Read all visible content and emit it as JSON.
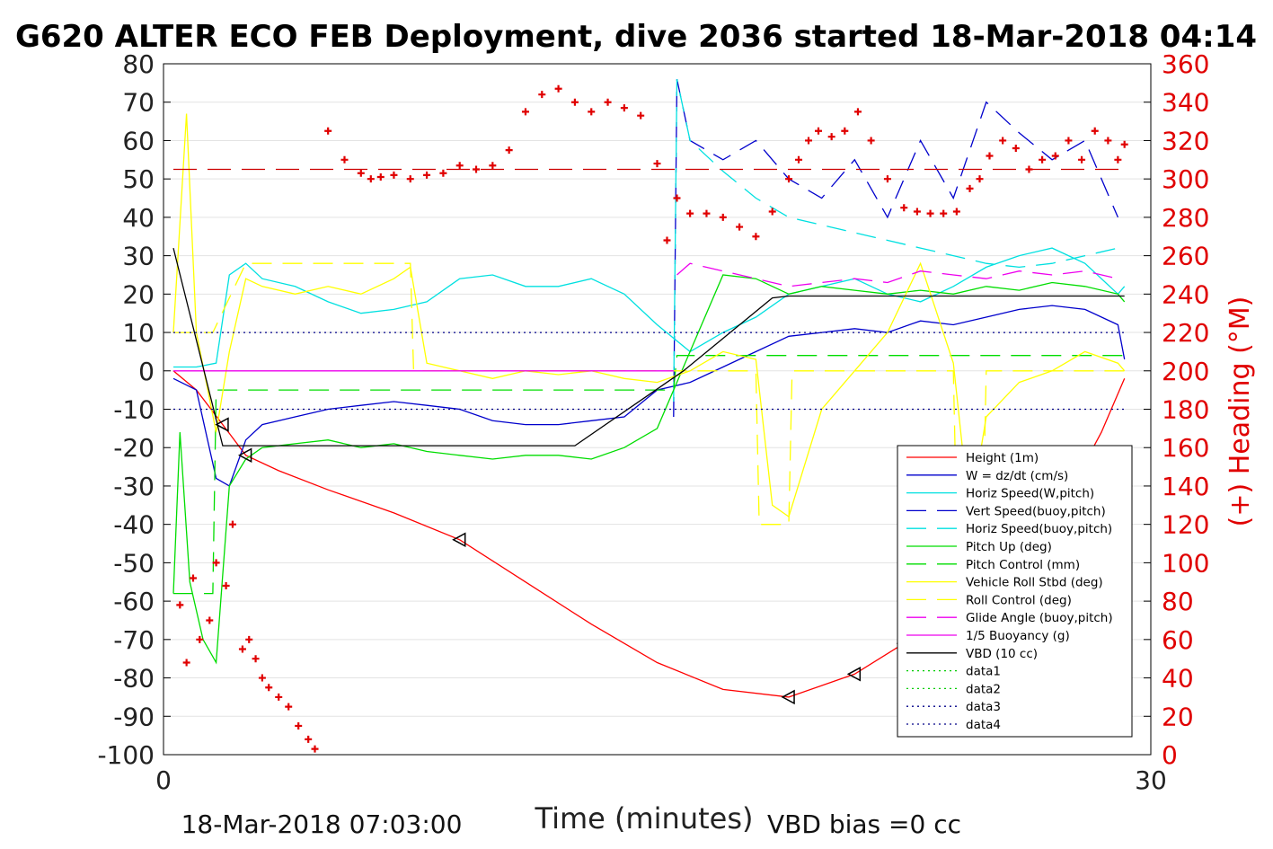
{
  "chart_data": {
    "type": "line",
    "title": "G620 ALTER ECO FEB Deployment, dive 2036 started 18-Mar-2018 04:14",
    "xlabel": "Time (minutes)",
    "ylabel_left": "",
    "ylabel_right": "(+) Heading (°M)",
    "xlim": [
      0,
      30
    ],
    "ylim_left": [
      -100,
      80
    ],
    "ylim_right": [
      0,
      360
    ],
    "x_ticks": [
      "0",
      "30"
    ],
    "y_ticks_left": [
      "80",
      "70",
      "60",
      "50",
      "40",
      "30",
      "20",
      "10",
      "0",
      "-10",
      "-20",
      "-30",
      "-40",
      "-50",
      "-60",
      "-70",
      "-80",
      "-90",
      "-100"
    ],
    "y_ticks_right": [
      "360",
      "340",
      "320",
      "300",
      "280",
      "260",
      "240",
      "220",
      "200",
      "180",
      "160",
      "140",
      "120",
      "100",
      "80",
      "60",
      "40",
      "20",
      "0"
    ],
    "grid": true,
    "legend_placement": "lower-right",
    "footer_left": "18-Mar-2018 07:03:00",
    "footer_right": "VBD bias =0 cc",
    "colors": {
      "right_axis": "#e00000",
      "heading_marker": "#e00000"
    },
    "series": [
      {
        "name": "Height (1m)",
        "color": "#ff0000",
        "style": "solid",
        "x": [
          0.3,
          1.0,
          1.8,
          2.5,
          3.5,
          5.0,
          7.0,
          9.0,
          11.0,
          13.0,
          15.0,
          17.0,
          19.0,
          21.0,
          22.5,
          24.0,
          25.0,
          26.0,
          27.5,
          28.5,
          29.2
        ],
        "y": [
          0,
          -5,
          -14,
          -22,
          -26,
          -31,
          -37,
          -44,
          -55,
          -66,
          -76,
          -83,
          -85,
          -79,
          -71,
          -63,
          -55,
          -46,
          -32,
          -16,
          -2
        ]
      },
      {
        "name": "W = dz/dt (cm/s)",
        "color": "#0000cc",
        "style": "solid",
        "x": [
          0.3,
          1.0,
          1.6,
          2.0,
          2.5,
          3.0,
          4.0,
          5.0,
          6.0,
          7.0,
          8.0,
          9.0,
          10.0,
          11.0,
          12.0,
          13.0,
          14.0,
          15.0,
          16.0,
          17.0,
          18.0,
          19.0,
          20.0,
          21.0,
          22.0,
          23.0,
          24.0,
          25.0,
          26.0,
          27.0,
          28.0,
          29.0,
          29.2
        ],
        "y": [
          -2,
          -5,
          -28,
          -30,
          -18,
          -14,
          -12,
          -10,
          -9,
          -8,
          -9,
          -10,
          -13,
          -14,
          -14,
          -13,
          -12,
          -5,
          -3,
          1,
          5,
          9,
          10,
          11,
          10,
          13,
          12,
          14,
          16,
          17,
          16,
          12,
          3
        ]
      },
      {
        "name": "Horiz Speed(W,pitch)",
        "color": "#00e0e0",
        "style": "solid",
        "x": [
          0.3,
          1.0,
          1.6,
          2.0,
          2.5,
          3.0,
          4.0,
          5.0,
          6.0,
          7.0,
          8.0,
          9.0,
          10.0,
          11.0,
          12.0,
          13.0,
          14.0,
          15.0,
          16.0,
          17.0,
          18.0,
          19.0,
          20.0,
          21.0,
          22.0,
          23.0,
          24.0,
          25.0,
          26.0,
          27.0,
          28.0,
          29.0,
          29.2
        ],
        "y": [
          1,
          1,
          2,
          25,
          28,
          24,
          22,
          18,
          15,
          16,
          18,
          24,
          25,
          22,
          22,
          24,
          20,
          12,
          5,
          10,
          14,
          20,
          22,
          24,
          20,
          18,
          22,
          27,
          30,
          32,
          28,
          20,
          22
        ]
      },
      {
        "name": "Vert Speed(buoy,pitch)",
        "color": "#0000cc",
        "style": "dashed",
        "x": [
          15.5,
          15.6,
          16.0,
          17.0,
          18.0,
          19.0,
          20.0,
          21.0,
          22.0,
          23.0,
          24.0,
          25.0,
          26.0,
          27.0,
          28.0,
          29.0
        ],
        "y": [
          -12,
          76,
          60,
          55,
          60,
          50,
          45,
          55,
          40,
          60,
          45,
          70,
          62,
          55,
          60,
          40
        ]
      },
      {
        "name": "Horiz Speed(buoy,pitch)",
        "color": "#00e0e0",
        "style": "dashed",
        "x": [
          15.5,
          15.6,
          16.0,
          17.0,
          18.0,
          19.0,
          20.0,
          21.0,
          22.0,
          23.0,
          24.0,
          25.0,
          26.0,
          27.0,
          28.0,
          29.0
        ],
        "y": [
          -8,
          76,
          60,
          52,
          45,
          40,
          38,
          36,
          34,
          32,
          30,
          28,
          27,
          28,
          30,
          32
        ]
      },
      {
        "name": "Pitch Up (deg)",
        "color": "#00dd00",
        "style": "solid",
        "x": [
          0.3,
          0.5,
          0.8,
          1.2,
          1.6,
          2.0,
          2.5,
          3.0,
          4.0,
          5.0,
          6.0,
          7.0,
          8.0,
          9.0,
          10.0,
          11.0,
          12.0,
          13.0,
          14.0,
          15.0,
          16.0,
          17.0,
          18.0,
          19.0,
          20.0,
          21.0,
          22.0,
          23.0,
          24.0,
          25.0,
          26.0,
          27.0,
          28.0,
          29.0,
          29.2
        ],
        "y": [
          -58,
          -16,
          -55,
          -70,
          -76,
          -30,
          -23,
          -20,
          -19,
          -18,
          -20,
          -19,
          -21,
          -22,
          -23,
          -22,
          -22,
          -23,
          -20,
          -15,
          5,
          25,
          24,
          20,
          22,
          21,
          20,
          21,
          20,
          22,
          21,
          23,
          22,
          20,
          18
        ]
      },
      {
        "name": "Pitch Control (mm)",
        "color": "#00dd00",
        "style": "dashed",
        "x": [
          0.3,
          1.5,
          1.6,
          15.5,
          15.6,
          29.2
        ],
        "y": [
          -58,
          -58,
          -5,
          -5,
          4,
          4
        ]
      },
      {
        "name": "Vehicle Roll Stbd (deg)",
        "color": "#ffff00",
        "style": "solid",
        "x": [
          0.3,
          0.7,
          1.0,
          1.6,
          2.0,
          2.5,
          3.0,
          4.0,
          5.0,
          6.0,
          7.0,
          7.5,
          8.0,
          9.0,
          10.0,
          11.0,
          12.0,
          13.0,
          14.0,
          15.0,
          16.0,
          17.0,
          18.0,
          18.5,
          19.0,
          20.0,
          21.0,
          22.0,
          23.0,
          24.0,
          24.5,
          25.0,
          26.0,
          27.0,
          28.0,
          29.0,
          29.2
        ],
        "y": [
          10,
          67,
          10,
          -16,
          5,
          24,
          22,
          20,
          22,
          20,
          24,
          27,
          2,
          0,
          -2,
          0,
          -1,
          0,
          -2,
          -3,
          0,
          5,
          3,
          -35,
          -38,
          -10,
          0,
          10,
          28,
          2,
          -38,
          -12,
          -3,
          0,
          5,
          2,
          0
        ]
      },
      {
        "name": "Roll Control (deg)",
        "color": "#ffff00",
        "style": "dashed",
        "x": [
          0.3,
          1.5,
          2.5,
          3.0,
          7.5,
          7.6,
          18.0,
          18.1,
          19.0,
          19.1,
          24.0,
          24.1,
          24.9,
          25.0,
          29.2
        ],
        "y": [
          10,
          10,
          28,
          28,
          28,
          0,
          0,
          -40,
          -40,
          0,
          0,
          -40,
          -40,
          0,
          0
        ]
      },
      {
        "name": "Glide Angle (buoy,pitch)",
        "color": "#ee00ee",
        "style": "dashed",
        "x": [
          15.6,
          16.0,
          17.0,
          18.0,
          19.0,
          20.0,
          21.0,
          22.0,
          23.0,
          24.0,
          25.0,
          26.0,
          27.0,
          28.0,
          29.0
        ],
        "y": [
          25,
          28,
          26,
          24,
          22,
          23,
          24,
          23,
          26,
          25,
          24,
          26,
          25,
          26,
          24
        ]
      },
      {
        "name": "1/5 Buoyancy (g)",
        "color": "#ee00ee",
        "style": "solid",
        "x": [
          0.3,
          15.5
        ],
        "y": [
          0,
          0
        ]
      },
      {
        "name": "VBD (10 cc)",
        "color": "#000000",
        "style": "solid",
        "x": [
          0.3,
          1.8,
          12.5,
          15.8,
          18.5,
          19.0,
          29.2
        ],
        "y": [
          32,
          -19.5,
          -19.5,
          0,
          19,
          19.5,
          19.5
        ]
      },
      {
        "name": "data1",
        "color": "#00cc00",
        "style": "dotted",
        "x": [],
        "y": []
      },
      {
        "name": "data2",
        "color": "#00cc00",
        "style": "dotted",
        "x": [],
        "y": []
      },
      {
        "name": "data3",
        "color": "#000088",
        "style": "dotted",
        "x": [
          0.3,
          29.2
        ],
        "y": [
          10,
          10
        ]
      },
      {
        "name": "data4",
        "color": "#000088",
        "style": "dotted",
        "x": [
          0.3,
          29.2
        ],
        "y": [
          -10,
          -10
        ]
      }
    ],
    "reference_lines": [
      {
        "axis": "right",
        "value": 305,
        "color": "#cc0000",
        "style": "longdash"
      }
    ],
    "heading": {
      "axis": "right",
      "color": "#e00000",
      "x": [
        0.5,
        0.7,
        0.9,
        1.1,
        1.4,
        1.6,
        1.9,
        2.1,
        2.4,
        2.6,
        2.8,
        3.0,
        3.2,
        3.5,
        3.8,
        4.1,
        4.4,
        4.6,
        5.0,
        5.5,
        6.0,
        6.3,
        6.6,
        7.0,
        7.5,
        8.0,
        8.5,
        9.0,
        9.5,
        10.0,
        10.5,
        11.0,
        11.5,
        12.0,
        12.5,
        13.0,
        13.5,
        14.0,
        14.5,
        15.0,
        15.3,
        15.6,
        16.0,
        16.5,
        17.0,
        17.5,
        18.0,
        18.5,
        19.0,
        19.3,
        19.6,
        19.9,
        20.3,
        20.7,
        21.1,
        21.5,
        22.0,
        22.5,
        22.9,
        23.3,
        23.7,
        24.1,
        24.5,
        24.8,
        25.1,
        25.5,
        25.9,
        26.3,
        26.7,
        27.1,
        27.5,
        27.9,
        28.3,
        28.7,
        29.0,
        29.2
      ],
      "y": [
        78,
        48,
        92,
        60,
        70,
        100,
        88,
        120,
        55,
        60,
        50,
        40,
        35,
        30,
        25,
        15,
        8,
        3,
        325,
        310,
        303,
        300,
        301,
        302,
        300,
        302,
        303,
        307,
        305,
        307,
        315,
        335,
        344,
        347,
        340,
        335,
        340,
        337,
        333,
        308,
        268,
        290,
        282,
        282,
        280,
        275,
        270,
        283,
        300,
        310,
        320,
        325,
        322,
        325,
        335,
        320,
        300,
        285,
        283,
        282,
        282,
        283,
        295,
        300,
        312,
        320,
        316,
        305,
        310,
        312,
        320,
        310,
        325,
        320,
        310,
        318
      ]
    },
    "annotations": {
      "glider_markers": {
        "style": "triangle",
        "color": "#000000"
      }
    }
  }
}
